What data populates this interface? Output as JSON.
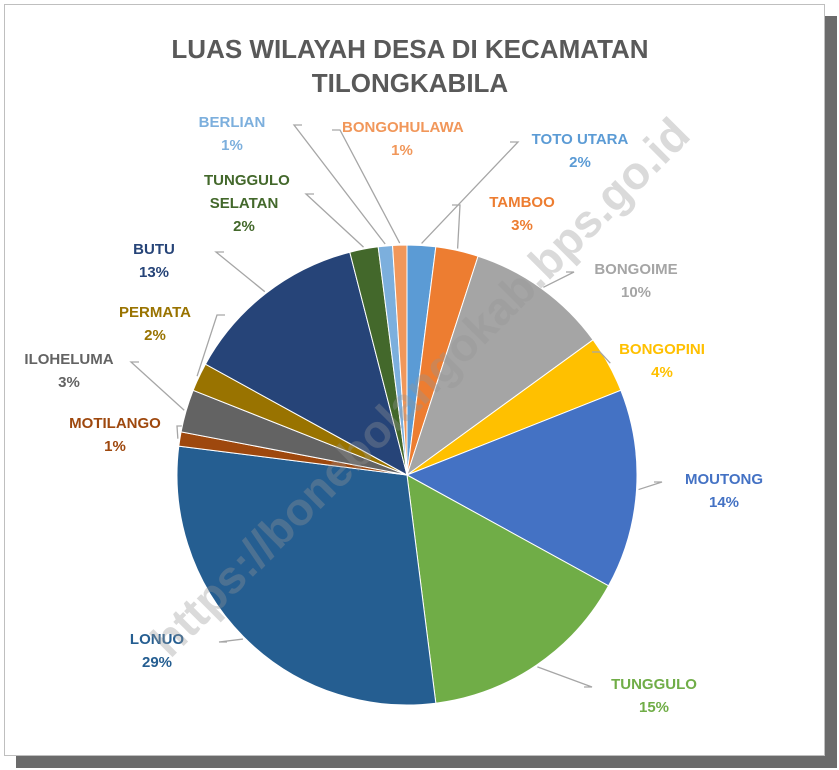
{
  "chart_data": {
    "type": "pie",
    "title": "LUAS WILAYAH DESA DI KECAMATAN TILONGKABILA",
    "watermark": "https://bonebolangokab.bps.go.id",
    "categories": [
      "TOTO UTARA",
      "TAMBOO",
      "BONGOIME",
      "BONGOPINI",
      "MOUTONG",
      "TUNGGULO",
      "LONUO",
      "MOTILANGO",
      "ILOHELUMA",
      "PERMATA",
      "BUTU",
      "TUNGGULO SELATAN",
      "BERLIAN",
      "BONGOHULAWA"
    ],
    "values": [
      2,
      3,
      10,
      4,
      14,
      15,
      29,
      1,
      3,
      2,
      13,
      2,
      1,
      1
    ],
    "value_labels": [
      "2%",
      "3%",
      "10%",
      "4%",
      "14%",
      "15%",
      "29%",
      "1%",
      "3%",
      "2%",
      "13%",
      "2%",
      "1%",
      "1%"
    ],
    "colors": [
      "#5b9bd5",
      "#ed7d31",
      "#a5a5a5",
      "#ffc000",
      "#4472c4",
      "#70ad47",
      "#255e91",
      "#9e480e",
      "#636363",
      "#997300",
      "#264478",
      "#43682b",
      "#7cafdd",
      "#f1975a"
    ]
  }
}
